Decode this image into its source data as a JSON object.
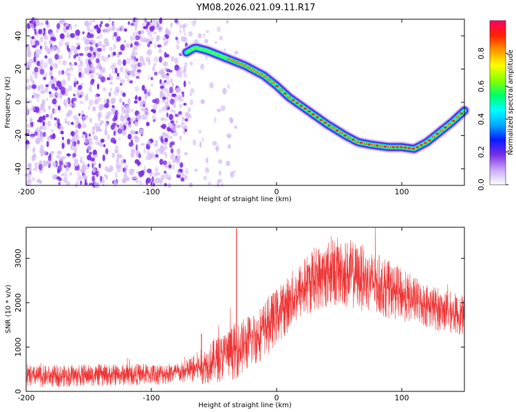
{
  "title": "YM08.2026.021.09.11.R17",
  "colors": {
    "snr_line": "#ee3333",
    "noise_purple": "#7f2fe8",
    "noise_light": "#d6bdf6"
  },
  "chart_data": [
    {
      "type": "heatmap",
      "name": "spectrogram",
      "xlabel": "Height of straight line (km)",
      "ylabel": "Frequency (Hz)",
      "xlim": [
        -200,
        150
      ],
      "ylim": [
        -50,
        50
      ],
      "xticks": [
        -200,
        -100,
        0,
        100
      ],
      "yticks": [
        -40,
        -20,
        0,
        20,
        40
      ],
      "colorbar": {
        "label": "Normalized spectral amplitude",
        "range": [
          0,
          1
        ],
        "ticks": [
          0.0,
          0.2,
          0.4,
          0.6,
          0.8
        ],
        "tick_labels": [
          "0.0",
          "0.2",
          "0.4",
          "0.6",
          "0.8"
        ],
        "colormap": [
          "#ffffff",
          "#c9a8f7",
          "#7a2fe6",
          "#0a1aff",
          "#00aaff",
          "#00ffff",
          "#00ff66",
          "#88ff00",
          "#ffff00",
          "#ff9900",
          "#ff2200",
          "#ff0066"
        ]
      },
      "noise_region_x": [
        -200,
        -72
      ],
      "track": {
        "x": [
          -72,
          -65,
          -55,
          -45,
          -35,
          -25,
          -10,
          0,
          10,
          25,
          40,
          55,
          65,
          75,
          90,
          100,
          110,
          120,
          130,
          140,
          150
        ],
        "freq": [
          30,
          33,
          31,
          28,
          25,
          22,
          16,
          10,
          3,
          -5,
          -13,
          -20,
          -24,
          -25.5,
          -27,
          -27,
          -28,
          -24,
          -18,
          -12,
          -5
        ]
      }
    },
    {
      "type": "line",
      "name": "snr",
      "xlabel": "Height of straight line (km)",
      "ylabel": "SNR (10 * v/v)",
      "xlim": [
        -200,
        150
      ],
      "ylim": [
        0,
        3700
      ],
      "xticks": [
        -200,
        -100,
        0,
        100
      ],
      "yticks": [
        0,
        1000,
        2000,
        3000
      ],
      "envelope": {
        "x": [
          -200,
          -150,
          -100,
          -75,
          -60,
          -50,
          -40,
          -30,
          -20,
          -10,
          0,
          10,
          20,
          30,
          45,
          55,
          70,
          90,
          110,
          130,
          150
        ],
        "mean": [
          330,
          360,
          390,
          420,
          560,
          700,
          820,
          960,
          1150,
          1400,
          1700,
          2000,
          2300,
          2550,
          2700,
          2680,
          2550,
          2300,
          2050,
          1850,
          1700
        ],
        "spread": [
          250,
          250,
          250,
          250,
          400,
          500,
          600,
          650,
          650,
          650,
          650,
          650,
          700,
          750,
          800,
          800,
          750,
          650,
          550,
          500,
          450
        ]
      },
      "spikes": [
        {
          "x": -60,
          "value": 1300
        },
        {
          "x": -48,
          "value": 1150
        },
        {
          "x": -32,
          "value": 3680
        }
      ]
    }
  ]
}
